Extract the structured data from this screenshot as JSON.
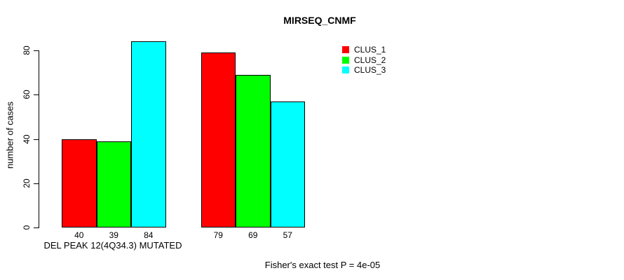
{
  "chart_data": {
    "type": "bar",
    "title": "MIRSEQ_CNMF",
    "ylabel": "number of cases",
    "xlabel": "DEL PEAK 12(4Q34.3) MUTATED",
    "footnote": "Fisher's exact test P = 4e-05",
    "ylim": [
      0,
      80
    ],
    "yticks": [
      0,
      20,
      40,
      60,
      80
    ],
    "grid": false,
    "legend_position": "top-right",
    "series": [
      {
        "name": "CLUS_1",
        "color": "#FF0000"
      },
      {
        "name": "CLUS_2",
        "color": "#00FF00"
      },
      {
        "name": "CLUS_3",
        "color": "#00FFFF"
      }
    ],
    "groups": [
      {
        "values": [
          40,
          39,
          84
        ]
      },
      {
        "values": [
          79,
          69,
          57
        ]
      }
    ],
    "value_labels_shown": true,
    "bar_border_color": "#000000",
    "axis_color": "#000000",
    "background_color": "#FFFFFF"
  }
}
